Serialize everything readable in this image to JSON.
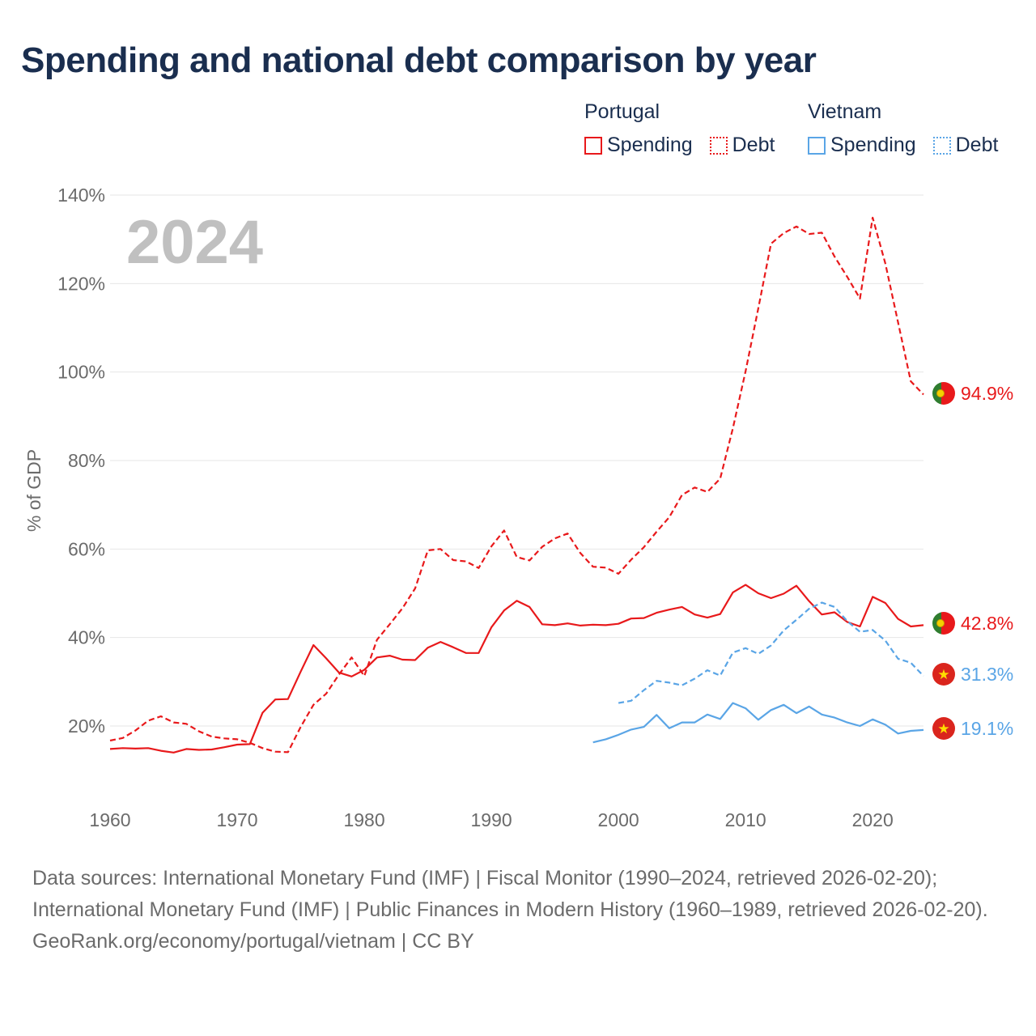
{
  "title": "Spending and national debt comparison by year",
  "legend": {
    "groups": [
      {
        "name": "Portugal",
        "items": [
          {
            "label": "Spending",
            "style": "solid",
            "color": "#e8191b"
          },
          {
            "label": "Debt",
            "style": "dotted",
            "color": "#e8191b"
          }
        ]
      },
      {
        "name": "Vietnam",
        "items": [
          {
            "label": "Spending",
            "style": "solid",
            "color": "#5aa5e6"
          },
          {
            "label": "Debt",
            "style": "dotted",
            "color": "#5aa5e6"
          }
        ]
      }
    ]
  },
  "footer": {
    "sources": "Data sources: International Monetary Fund (IMF) | Fiscal Monitor (1990–2024, retrieved 2026-02-20); International Monetary Fund (IMF) | Public Finances in Modern History (1960–1989, retrieved 2026-02-20).",
    "credit": "GeoRank.org/economy/portugal/vietnam | CC BY"
  },
  "chart_data": {
    "type": "line",
    "title": "Spending and national debt comparison by year",
    "year_label": "2024",
    "ylabel": "% of GDP",
    "xlabel": "",
    "xlim": [
      1960,
      2024
    ],
    "ylim": [
      0,
      140
    ],
    "x_ticks": [
      1960,
      1970,
      1980,
      1990,
      2000,
      2010,
      2020
    ],
    "y_ticks": [
      20,
      40,
      60,
      80,
      100,
      120,
      140
    ],
    "y_tick_labels": [
      "20%",
      "40%",
      "60%",
      "80%",
      "100%",
      "120%",
      "140%"
    ],
    "colors": {
      "portugal": "#e8191b",
      "vietnam": "#5aa5e6",
      "grid": "#e6e6e6",
      "axis_text": "#6b6b6b",
      "year_watermark": "#c0c0c0"
    },
    "series": [
      {
        "name": "Portugal Debt",
        "country": "Portugal",
        "measure": "Debt",
        "dash": "dashed",
        "color": "#e8191b",
        "end_label": "94.9%",
        "end_value": 94.9,
        "points": [
          [
            1960,
            16.7
          ],
          [
            1961,
            17.3
          ],
          [
            1962,
            19
          ],
          [
            1963,
            21.2
          ],
          [
            1964,
            22.2
          ],
          [
            1965,
            20.8
          ],
          [
            1966,
            20.5
          ],
          [
            1967,
            18.8
          ],
          [
            1968,
            17.6
          ],
          [
            1969,
            17.2
          ],
          [
            1970,
            17
          ],
          [
            1971,
            16.2
          ],
          [
            1972,
            15
          ],
          [
            1973,
            14.2
          ],
          [
            1974,
            14.1
          ],
          [
            1975,
            19.8
          ],
          [
            1976,
            24.8
          ],
          [
            1977,
            27.3
          ],
          [
            1978,
            31.6
          ],
          [
            1979,
            35.5
          ],
          [
            1980,
            31.3
          ],
          [
            1981,
            39.5
          ],
          [
            1982,
            43
          ],
          [
            1983,
            46.6
          ],
          [
            1984,
            51.1
          ],
          [
            1985,
            59.7
          ],
          [
            1986,
            60
          ],
          [
            1987,
            57.5
          ],
          [
            1988,
            57.2
          ],
          [
            1989,
            55.7
          ],
          [
            1990,
            60.6
          ],
          [
            1991,
            64.2
          ],
          [
            1992,
            58.2
          ],
          [
            1993,
            57.4
          ],
          [
            1994,
            60.5
          ],
          [
            1995,
            62.4
          ],
          [
            1996,
            63.5
          ],
          [
            1997,
            59.1
          ],
          [
            1998,
            56
          ],
          [
            1999,
            55.8
          ],
          [
            2000,
            54.4
          ],
          [
            2001,
            57.6
          ],
          [
            2002,
            60.4
          ],
          [
            2003,
            63.9
          ],
          [
            2004,
            67.2
          ],
          [
            2005,
            72.2
          ],
          [
            2006,
            73.9
          ],
          [
            2007,
            72.9
          ],
          [
            2008,
            75.9
          ],
          [
            2009,
            87.3
          ],
          [
            2010,
            100.2
          ],
          [
            2011,
            114.4
          ],
          [
            2012,
            129
          ],
          [
            2013,
            131.4
          ],
          [
            2014,
            132.9
          ],
          [
            2015,
            131.2
          ],
          [
            2016,
            131.5
          ],
          [
            2017,
            126.1
          ],
          [
            2018,
            121.5
          ],
          [
            2019,
            116.6
          ],
          [
            2020,
            134.9
          ],
          [
            2021,
            124.5
          ],
          [
            2022,
            111.2
          ],
          [
            2023,
            97.9
          ],
          [
            2024,
            94.9
          ]
        ]
      },
      {
        "name": "Portugal Spending",
        "country": "Portugal",
        "measure": "Spending",
        "dash": "solid",
        "color": "#e8191b",
        "end_label": "42.8%",
        "end_value": 42.8,
        "points": [
          [
            1960,
            14.8
          ],
          [
            1961,
            15
          ],
          [
            1962,
            14.9
          ],
          [
            1963,
            15
          ],
          [
            1964,
            14.4
          ],
          [
            1965,
            14
          ],
          [
            1966,
            14.8
          ],
          [
            1967,
            14.6
          ],
          [
            1968,
            14.7
          ],
          [
            1969,
            15.2
          ],
          [
            1970,
            15.8
          ],
          [
            1971,
            15.9
          ],
          [
            1972,
            23
          ],
          [
            1973,
            26
          ],
          [
            1974,
            26.1
          ],
          [
            1975,
            32.3
          ],
          [
            1976,
            38.3
          ],
          [
            1977,
            35.3
          ],
          [
            1978,
            32.1
          ],
          [
            1979,
            31.2
          ],
          [
            1980,
            32.7
          ],
          [
            1981,
            35.5
          ],
          [
            1982,
            35.9
          ],
          [
            1983,
            35
          ],
          [
            1984,
            34.9
          ],
          [
            1985,
            37.7
          ],
          [
            1986,
            39
          ],
          [
            1987,
            37.8
          ],
          [
            1988,
            36.5
          ],
          [
            1989,
            36.5
          ],
          [
            1990,
            42.3
          ],
          [
            1991,
            46.1
          ],
          [
            1992,
            48.3
          ],
          [
            1993,
            46.9
          ],
          [
            1994,
            43
          ],
          [
            1995,
            42.8
          ],
          [
            1996,
            43.2
          ],
          [
            1997,
            42.7
          ],
          [
            1998,
            42.9
          ],
          [
            1999,
            42.8
          ],
          [
            2000,
            43.1
          ],
          [
            2001,
            44.3
          ],
          [
            2002,
            44.4
          ],
          [
            2003,
            45.6
          ],
          [
            2004,
            46.3
          ],
          [
            2005,
            46.9
          ],
          [
            2006,
            45.2
          ],
          [
            2007,
            44.5
          ],
          [
            2008,
            45.3
          ],
          [
            2009,
            50.2
          ],
          [
            2010,
            51.9
          ],
          [
            2011,
            50
          ],
          [
            2012,
            48.9
          ],
          [
            2013,
            49.9
          ],
          [
            2014,
            51.7
          ],
          [
            2015,
            48.2
          ],
          [
            2016,
            45.2
          ],
          [
            2017,
            45.7
          ],
          [
            2018,
            43.5
          ],
          [
            2019,
            42.5
          ],
          [
            2020,
            49.2
          ],
          [
            2021,
            47.8
          ],
          [
            2022,
            44.2
          ],
          [
            2023,
            42.5
          ],
          [
            2024,
            42.8
          ]
        ]
      },
      {
        "name": "Vietnam Debt",
        "country": "Vietnam",
        "measure": "Debt",
        "dash": "dashed",
        "color": "#5aa5e6",
        "end_label": "31.3%",
        "end_value": 31.3,
        "points": [
          [
            2000,
            25.2
          ],
          [
            2001,
            25.7
          ],
          [
            2002,
            28.1
          ],
          [
            2003,
            30.2
          ],
          [
            2004,
            29.8
          ],
          [
            2005,
            29.2
          ],
          [
            2006,
            30.7
          ],
          [
            2007,
            32.6
          ],
          [
            2008,
            31.4
          ],
          [
            2009,
            36.6
          ],
          [
            2010,
            37.6
          ],
          [
            2011,
            36.3
          ],
          [
            2012,
            38.2
          ],
          [
            2013,
            41.6
          ],
          [
            2014,
            44
          ],
          [
            2015,
            46.5
          ],
          [
            2016,
            47.9
          ],
          [
            2017,
            46.9
          ],
          [
            2018,
            43.7
          ],
          [
            2019,
            41.3
          ],
          [
            2020,
            41.7
          ],
          [
            2021,
            39.3
          ],
          [
            2022,
            35.2
          ],
          [
            2023,
            34.3
          ],
          [
            2024,
            31.3
          ]
        ]
      },
      {
        "name": "Vietnam Spending",
        "country": "Vietnam",
        "measure": "Spending",
        "dash": "solid",
        "color": "#5aa5e6",
        "end_label": "19.1%",
        "end_value": 19.1,
        "points": [
          [
            1998,
            16.3
          ],
          [
            1999,
            17
          ],
          [
            2000,
            18
          ],
          [
            2001,
            19.2
          ],
          [
            2002,
            19.8
          ],
          [
            2003,
            22.5
          ],
          [
            2004,
            19.5
          ],
          [
            2005,
            20.8
          ],
          [
            2006,
            20.8
          ],
          [
            2007,
            22.6
          ],
          [
            2008,
            21.6
          ],
          [
            2009,
            25.2
          ],
          [
            2010,
            24
          ],
          [
            2011,
            21.4
          ],
          [
            2012,
            23.6
          ],
          [
            2013,
            24.8
          ],
          [
            2014,
            22.9
          ],
          [
            2015,
            24.4
          ],
          [
            2016,
            22.6
          ],
          [
            2017,
            21.9
          ],
          [
            2018,
            20.8
          ],
          [
            2019,
            20
          ],
          [
            2020,
            21.5
          ],
          [
            2021,
            20.3
          ],
          [
            2022,
            18.3
          ],
          [
            2023,
            18.9
          ],
          [
            2024,
            19.1
          ]
        ]
      }
    ]
  }
}
